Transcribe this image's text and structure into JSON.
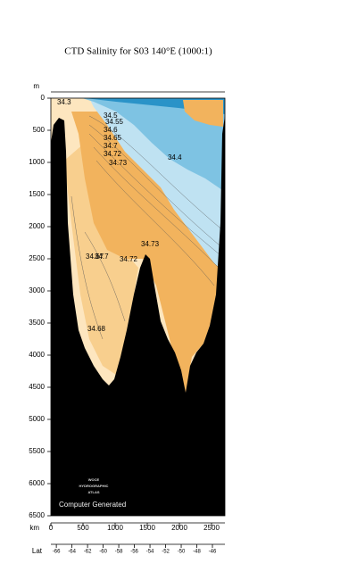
{
  "chart_data": {
    "type": "section",
    "title": "CTD Salinity for S03 140°E (1000:1)",
    "y_label": "m",
    "x_label": "km",
    "x2_label": "Lat",
    "ylim": [
      0,
      6500
    ],
    "yticks": [
      0,
      500,
      1000,
      1500,
      2000,
      2500,
      3000,
      3500,
      4000,
      4500,
      5000,
      5500,
      6000,
      6500
    ],
    "xlim": [
      0,
      2708
    ],
    "xticks": [
      0,
      500,
      1000,
      1500,
      2000,
      2500
    ],
    "x2lim": [
      -66.7,
      -44.4
    ],
    "x2ticks": [
      -66,
      -64,
      -62,
      -60,
      -58,
      -56,
      -54,
      -52,
      -50,
      -48,
      -46
    ],
    "annotations": [
      {
        "text": "34.3",
        "x": 97,
        "y": 69
      },
      {
        "text": "34.5",
        "x": 819,
        "y": 278
      },
      {
        "text": "34.55",
        "x": 847,
        "y": 375
      },
      {
        "text": "34.6",
        "x": 819,
        "y": 500
      },
      {
        "text": "34.65",
        "x": 819,
        "y": 625
      },
      {
        "text": "34.7",
        "x": 819,
        "y": 750
      },
      {
        "text": "34.72",
        "x": 819,
        "y": 875
      },
      {
        "text": "34.73",
        "x": 903,
        "y": 1014
      },
      {
        "text": "34.4",
        "x": 1819,
        "y": 931
      },
      {
        "text": "34.73",
        "x": 1403,
        "y": 2278
      },
      {
        "text": "34.67",
        "x": 542,
        "y": 2472
      },
      {
        "text": "34.7",
        "x": 681,
        "y": 2472
      },
      {
        "text": "34.72",
        "x": 1069,
        "y": 2514
      },
      {
        "text": "34.68",
        "x": 569,
        "y": 3597
      }
    ],
    "watermark": [
      "WOCE",
      "HYDROGRAPHIC",
      "ATLAS"
    ],
    "footer": "Computer Generated"
  }
}
